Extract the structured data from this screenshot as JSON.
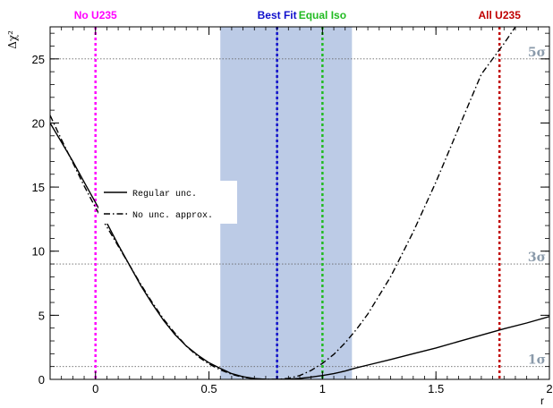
{
  "chart_data": {
    "type": "line",
    "title": "",
    "xlabel": "r",
    "ylabel": "Δχ²",
    "xlim": [
      -0.2,
      2.0
    ],
    "ylim": [
      0,
      27.5
    ],
    "grid": false,
    "xticks": [
      {
        "value": 0,
        "label": "0"
      },
      {
        "value": 0.5,
        "label": "0.5"
      },
      {
        "value": 1,
        "label": "1"
      },
      {
        "value": 1.5,
        "label": "1.5"
      },
      {
        "value": 2,
        "label": "2"
      }
    ],
    "yticks": [
      {
        "value": 0,
        "label": "0"
      },
      {
        "value": 5,
        "label": "5"
      },
      {
        "value": 10,
        "label": "10"
      },
      {
        "value": 15,
        "label": "15"
      },
      {
        "value": 20,
        "label": "20"
      },
      {
        "value": 25,
        "label": "25"
      }
    ],
    "band": {
      "x_min": 0.55,
      "x_max": 1.13,
      "center": 0.8,
      "color": "#bccbe6",
      "center_color": "#7e92c2"
    },
    "sigma_lines": [
      {
        "y": 1,
        "label": "1σ"
      },
      {
        "y": 9,
        "label": "3σ"
      },
      {
        "y": 25,
        "label": "5σ"
      }
    ],
    "sigma_color": "#8a9aaa",
    "markers": [
      {
        "x": 0.0,
        "label": "No U235",
        "color": "#ff00ff"
      },
      {
        "x": 0.8,
        "label": "Best Fit",
        "color": "#1010cc"
      },
      {
        "x": 1.0,
        "label": "Equal Iso",
        "color": "#22bb22"
      },
      {
        "x": 1.78,
        "label": "All U235",
        "color": "#c00000"
      }
    ],
    "legend": {
      "placement": "left",
      "entries": [
        "Regular unc.",
        "No unc. approx."
      ]
    },
    "series": [
      {
        "name": "Regular unc.",
        "style": "solid",
        "x": [
          -0.2,
          -0.15,
          -0.1,
          -0.05,
          0.0,
          0.05,
          0.1,
          0.15,
          0.2,
          0.25,
          0.3,
          0.35,
          0.4,
          0.45,
          0.5,
          0.55,
          0.6,
          0.65,
          0.7,
          0.75,
          0.8,
          0.85,
          0.9,
          0.95,
          1.0,
          1.05,
          1.1,
          1.15,
          1.2,
          1.3,
          1.4,
          1.5,
          1.6,
          1.7,
          1.8,
          1.9,
          2.0
        ],
        "y": [
          20.0,
          18.5,
          17.0,
          15.4,
          13.8,
          12.2,
          10.5,
          8.9,
          7.3,
          5.9,
          4.6,
          3.5,
          2.6,
          1.9,
          1.3,
          0.85,
          0.45,
          0.2,
          0.06,
          0.01,
          0.0,
          0.02,
          0.08,
          0.18,
          0.3,
          0.45,
          0.65,
          0.9,
          1.12,
          1.55,
          2.0,
          2.45,
          2.95,
          3.45,
          3.95,
          4.4,
          4.9
        ]
      },
      {
        "name": "No unc. approx.",
        "style": "dash-dot",
        "x": [
          -0.2,
          -0.15,
          -0.1,
          -0.05,
          0.0,
          0.05,
          0.1,
          0.15,
          0.2,
          0.25,
          0.3,
          0.35,
          0.4,
          0.45,
          0.5,
          0.55,
          0.6,
          0.65,
          0.7,
          0.75,
          0.8,
          0.85,
          0.9,
          0.95,
          1.0,
          1.05,
          1.1,
          1.15,
          1.2,
          1.3,
          1.4,
          1.5,
          1.6,
          1.7,
          1.8,
          1.85
        ],
        "y": [
          20.6,
          18.7,
          16.9,
          15.1,
          13.4,
          11.9,
          10.4,
          8.9,
          7.4,
          6.0,
          4.7,
          3.6,
          2.6,
          1.8,
          1.2,
          0.75,
          0.4,
          0.17,
          0.05,
          0.01,
          0.0,
          0.08,
          0.3,
          0.7,
          1.25,
          1.95,
          2.85,
          3.9,
          5.1,
          8.0,
          11.5,
          15.4,
          19.6,
          23.8,
          26.2,
          27.5
        ]
      }
    ]
  }
}
